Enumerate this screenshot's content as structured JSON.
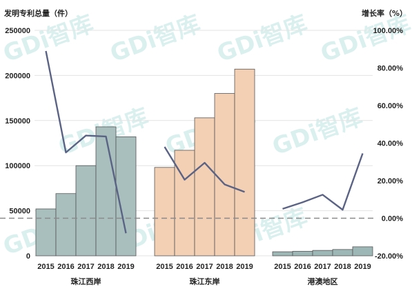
{
  "chart_data": {
    "type": "bar+line",
    "left_axis_title": "发明专利总量（件）",
    "right_axis_title": "增长率（%）",
    "left_ticks": [
      "250000",
      "200000",
      "150000",
      "100000",
      "50000",
      "0"
    ],
    "right_ticks": [
      "100.00%",
      "80.00%",
      "60.00%",
      "40.00%",
      "20.00%",
      "0.00%",
      "-20.00%"
    ],
    "ylim_left": [
      0,
      250000
    ],
    "ylim_right": [
      -20,
      100
    ],
    "years": [
      "2015",
      "2016",
      "2017",
      "2018",
      "2019"
    ],
    "groups": [
      {
        "name": "珠江西岸",
        "bar_color": "#a9bfbd",
        "values": [
          52000,
          69000,
          100000,
          143000,
          132000
        ],
        "growth": [
          89,
          35,
          44,
          43.5,
          -8
        ]
      },
      {
        "name": "珠江东岸",
        "bar_color": "#f3cfb4",
        "values": [
          98000,
          117000,
          153000,
          180000,
          207000
        ],
        "growth": [
          38,
          20.5,
          29.5,
          18,
          14
        ]
      },
      {
        "name": "港澳地区",
        "bar_color": "#9db7b6",
        "values": [
          4500,
          5000,
          6000,
          7000,
          10000
        ],
        "growth": [
          5,
          8.5,
          12.5,
          4.5,
          34.5
        ]
      }
    ],
    "line_color": "#5b6384",
    "zero_line_color": "#8a8a8a",
    "grid": true,
    "watermark": "GDi智库"
  }
}
